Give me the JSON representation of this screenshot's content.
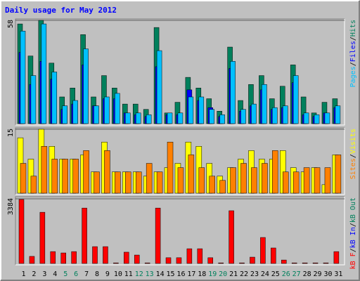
{
  "chart_data": [
    {
      "type": "bar",
      "title": "Daily usage for May 2012",
      "ylim": [
        0,
        58
      ],
      "yticks": [
        58
      ],
      "legend_separator": "/",
      "series": [
        {
          "name": "Hits",
          "color": "#00805c",
          "values": [
            56,
            38,
            58,
            34,
            15,
            20,
            50,
            15,
            27,
            20,
            11,
            11,
            8,
            54,
            6,
            12,
            26,
            20,
            14,
            7,
            43,
            13,
            22,
            27,
            14,
            21,
            33,
            15,
            6,
            12,
            14
          ]
        },
        {
          "name": "Files",
          "color": "#0000ff",
          "values": [
            40,
            22,
            35,
            25,
            8,
            11,
            33,
            10,
            14,
            14,
            6,
            5,
            4,
            32,
            5,
            5,
            19,
            13,
            9,
            4,
            31,
            7,
            10,
            19,
            8,
            9,
            23,
            5,
            4,
            6,
            9
          ]
        },
        {
          "name": "Pages",
          "color": "#00c0ff",
          "values": [
            52,
            27,
            56,
            29,
            10,
            13,
            42,
            10,
            15,
            17,
            6,
            6,
            5,
            41,
            6,
            6,
            15,
            15,
            8,
            5,
            35,
            8,
            11,
            22,
            9,
            10,
            27,
            6,
            5,
            6,
            10
          ]
        }
      ]
    },
    {
      "type": "bar",
      "ylim": [
        0,
        15
      ],
      "yticks": [
        15
      ],
      "legend_separator": "/",
      "series": [
        {
          "name": "Visits",
          "color": "#ffff00",
          "values": [
            13,
            8,
            15,
            11,
            8,
            8,
            9,
            5,
            12,
            5,
            5,
            5,
            4,
            5,
            6,
            7,
            12,
            11,
            7,
            4,
            6,
            8,
            10,
            8,
            8,
            10,
            6,
            5,
            6,
            2,
            9
          ]
        },
        {
          "name": "Sites",
          "color": "#ff8000",
          "values": [
            7,
            4,
            11,
            8,
            8,
            8,
            10,
            5,
            10,
            5,
            5,
            5,
            7,
            5,
            12,
            6,
            9,
            6,
            4,
            3,
            6,
            7,
            6,
            7,
            10,
            5,
            5,
            6,
            6,
            6,
            9
          ]
        }
      ]
    },
    {
      "type": "bar",
      "ylim": [
        0,
        3384
      ],
      "yticks": [
        3384
      ],
      "legend_separator": "/",
      "categories": [
        "1",
        "2",
        "3",
        "4",
        "5",
        "6",
        "7",
        "8",
        "9",
        "10",
        "11",
        "12",
        "13",
        "14",
        "15",
        "16",
        "17",
        "18",
        "19",
        "20",
        "21",
        "22",
        "23",
        "24",
        "25",
        "26",
        "27",
        "28",
        "29",
        "30",
        "31"
      ],
      "category_colors": [
        "#000",
        "#000",
        "#000",
        "#000",
        "#00805c",
        "#00805c",
        "#000",
        "#000",
        "#000",
        "#000",
        "#000",
        "#00805c",
        "#00805c",
        "#000",
        "#000",
        "#000",
        "#000",
        "#000",
        "#00805c",
        "#00805c",
        "#000",
        "#000",
        "#000",
        "#000",
        "#000",
        "#00805c",
        "#00805c",
        "#000",
        "#000",
        "#000",
        "#000"
      ],
      "series": [
        {
          "name": "kB Out",
          "color": "#00805c",
          "values": [
            0,
            0,
            0,
            0,
            0,
            0,
            0,
            0,
            0,
            0,
            0,
            0,
            0,
            0,
            0,
            0,
            0,
            0,
            0,
            0,
            0,
            0,
            0,
            0,
            0,
            0,
            0,
            0,
            0,
            0,
            0
          ]
        },
        {
          "name": "kB In",
          "color": "#0000ff",
          "values": [
            0,
            0,
            0,
            0,
            0,
            0,
            0,
            0,
            0,
            0,
            0,
            0,
            0,
            0,
            0,
            0,
            0,
            0,
            0,
            0,
            0,
            0,
            0,
            0,
            0,
            0,
            0,
            0,
            0,
            0,
            0
          ]
        },
        {
          "name": "kB F",
          "color": "#ff0000",
          "values": [
            3350,
            370,
            2680,
            620,
            550,
            620,
            2900,
            880,
            880,
            30,
            590,
            440,
            30,
            2900,
            300,
            300,
            770,
            770,
            300,
            30,
            2760,
            30,
            330,
            1360,
            810,
            180,
            30,
            30,
            30,
            30,
            620
          ]
        }
      ]
    }
  ]
}
